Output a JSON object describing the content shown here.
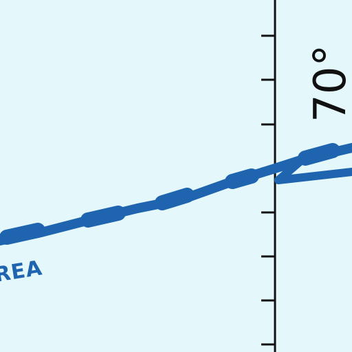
{
  "map": {
    "background_color": "#e4f8fc",
    "meridian_color": "#111111",
    "boundary_color": "#1f64ae",
    "latitude_label": "70°",
    "area_label": "REA"
  }
}
